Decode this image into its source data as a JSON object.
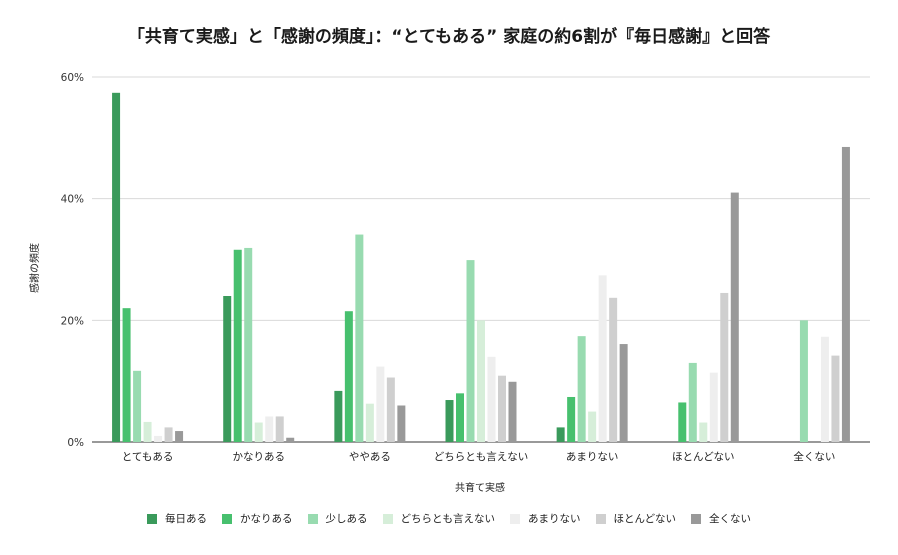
{
  "chart_data": {
    "type": "bar",
    "title": "「共育て実感」と「感謝の頻度」：“とてもある” 家庭の約6割が『毎日感謝』と回答",
    "xlabel": "共育て実感",
    "ylabel": "感謝の頻度",
    "ylim": [
      0,
      60
    ],
    "yticks": [
      "0%",
      "20%",
      "40%",
      "60%"
    ],
    "ytick_values": [
      0,
      20,
      40,
      60
    ],
    "grid": true,
    "legend_position": "bottom",
    "categories": [
      "とてもある",
      "かなりある",
      "ややある",
      "どちらとも言えない",
      "あまりない",
      "ほとんどない",
      "全くない"
    ],
    "series": [
      {
        "name": "毎日ある",
        "color": "#3a9a5b",
        "values": [
          57.4,
          24.0,
          8.4,
          6.9,
          2.4,
          0,
          0
        ]
      },
      {
        "name": "かなりある",
        "color": "#47c06e",
        "values": [
          22.0,
          31.6,
          21.5,
          8.0,
          7.4,
          6.5,
          0
        ]
      },
      {
        "name": "少しある",
        "color": "#98dbb0",
        "values": [
          11.7,
          31.9,
          34.1,
          29.9,
          17.4,
          13.0,
          20.0
        ]
      },
      {
        "name": "どちらとも言えない",
        "color": "#d6eed9",
        "values": [
          3.3,
          3.2,
          6.3,
          20.0,
          5.0,
          3.2,
          0
        ]
      },
      {
        "name": "あまりない",
        "color": "#eeeeee",
        "values": [
          1.0,
          4.2,
          12.4,
          14.0,
          27.4,
          11.4,
          17.3
        ]
      },
      {
        "name": "ほとんどない",
        "color": "#cfcfcf",
        "values": [
          2.4,
          4.2,
          10.6,
          10.9,
          23.7,
          24.5,
          14.2
        ]
      },
      {
        "name": "全くない",
        "color": "#999999",
        "values": [
          1.8,
          0.7,
          6.0,
          9.9,
          16.1,
          41.0,
          48.5
        ]
      }
    ]
  }
}
